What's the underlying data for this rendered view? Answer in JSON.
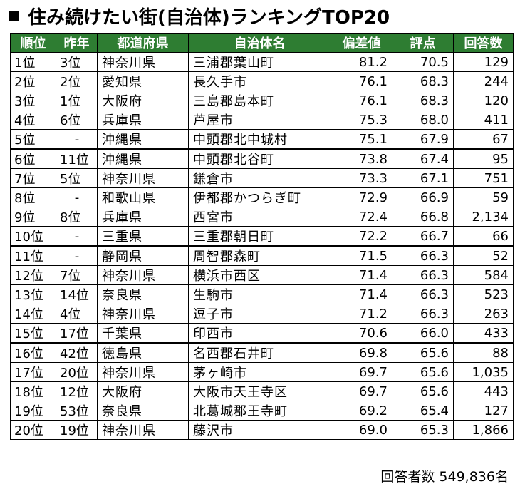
{
  "title": "住み続けたい街(自治体)ランキングTOP20",
  "headers": [
    "順位",
    "昨年",
    "都道府県",
    "自治体名",
    "偏差値",
    "評点",
    "回答数"
  ],
  "rows": [
    {
      "rank": "1位",
      "prev": "3位",
      "pref": "神奈川県",
      "city": "三浦郡葉山町",
      "dev": "81.2",
      "score": "70.5",
      "count": "129"
    },
    {
      "rank": "2位",
      "prev": "2位",
      "pref": "愛知県",
      "city": "長久手市",
      "dev": "76.1",
      "score": "68.3",
      "count": "244"
    },
    {
      "rank": "3位",
      "prev": "1位",
      "pref": "大阪府",
      "city": "三島郡島本町",
      "dev": "76.1",
      "score": "68.3",
      "count": "120"
    },
    {
      "rank": "4位",
      "prev": "6位",
      "pref": "兵庫県",
      "city": "芦屋市",
      "dev": "75.3",
      "score": "68.0",
      "count": "411"
    },
    {
      "rank": "5位",
      "prev": "-",
      "pref": "沖縄県",
      "city": "中頭郡北中城村",
      "dev": "75.1",
      "score": "67.9",
      "count": "67"
    },
    {
      "rank": "6位",
      "prev": "11位",
      "pref": "沖縄県",
      "city": "中頭郡北谷町",
      "dev": "73.8",
      "score": "67.4",
      "count": "95"
    },
    {
      "rank": "7位",
      "prev": "5位",
      "pref": "神奈川県",
      "city": "鎌倉市",
      "dev": "73.3",
      "score": "67.1",
      "count": "751"
    },
    {
      "rank": "8位",
      "prev": "-",
      "pref": "和歌山県",
      "city": "伊都郡かつらぎ町",
      "dev": "72.9",
      "score": "66.9",
      "count": "59"
    },
    {
      "rank": "9位",
      "prev": "8位",
      "pref": "兵庫県",
      "city": "西宮市",
      "dev": "72.4",
      "score": "66.8",
      "count": "2,134"
    },
    {
      "rank": "10位",
      "prev": "-",
      "pref": "三重県",
      "city": "三重郡朝日町",
      "dev": "72.2",
      "score": "66.7",
      "count": "66"
    },
    {
      "rank": "11位",
      "prev": "-",
      "pref": "静岡県",
      "city": "周智郡森町",
      "dev": "71.5",
      "score": "66.3",
      "count": "52"
    },
    {
      "rank": "12位",
      "prev": "7位",
      "pref": "神奈川県",
      "city": "横浜市西区",
      "dev": "71.4",
      "score": "66.3",
      "count": "584"
    },
    {
      "rank": "13位",
      "prev": "14位",
      "pref": "奈良県",
      "city": "生駒市",
      "dev": "71.4",
      "score": "66.3",
      "count": "523"
    },
    {
      "rank": "14位",
      "prev": "4位",
      "pref": "神奈川県",
      "city": "逗子市",
      "dev": "71.2",
      "score": "66.3",
      "count": "263"
    },
    {
      "rank": "15位",
      "prev": "17位",
      "pref": "千葉県",
      "city": "印西市",
      "dev": "70.6",
      "score": "66.0",
      "count": "433"
    },
    {
      "rank": "16位",
      "prev": "42位",
      "pref": "徳島県",
      "city": "名西郡石井町",
      "dev": "69.8",
      "score": "65.6",
      "count": "88"
    },
    {
      "rank": "17位",
      "prev": "20位",
      "pref": "神奈川県",
      "city": "茅ヶ崎市",
      "dev": "69.7",
      "score": "65.6",
      "count": "1,035"
    },
    {
      "rank": "18位",
      "prev": "12位",
      "pref": "大阪府",
      "city": "大阪市天王寺区",
      "dev": "69.7",
      "score": "65.6",
      "count": "443"
    },
    {
      "rank": "19位",
      "prev": "53位",
      "pref": "奈良県",
      "city": "北葛城郡王寺町",
      "dev": "69.2",
      "score": "65.4",
      "count": "127"
    },
    {
      "rank": "20位",
      "prev": "19位",
      "pref": "神奈川県",
      "city": "藤沢市",
      "dev": "69.0",
      "score": "65.3",
      "count": "1,866"
    }
  ],
  "footer": "回答者数 549,836名",
  "colors": {
    "header_bg": "#2e7d32",
    "header_text": "#ffffff"
  }
}
